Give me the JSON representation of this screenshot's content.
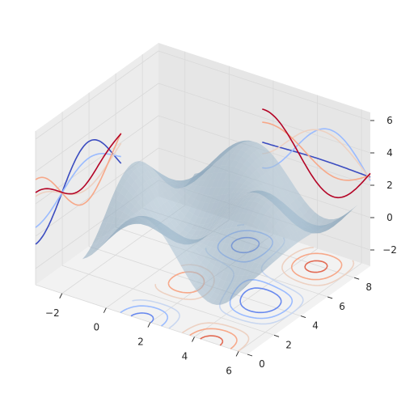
{
  "chart_data": {
    "type": "surface3d",
    "description_free": true,
    "surface": {
      "function": "z = 2*sin(x)*cos(y) + noise-free lobes",
      "x_range": [
        -3,
        6.5
      ],
      "y_range": [
        0,
        9
      ],
      "colors": {
        "surface_light": "#cfe3f0",
        "surface_mid": "#a9c8dd",
        "surface_dark": "#5f7f99"
      }
    },
    "axes": {
      "x": {
        "ticks": [
          -2,
          0,
          2,
          4,
          6
        ],
        "range": [
          -3.2,
          6.4
        ]
      },
      "y": {
        "ticks": [
          0,
          2,
          4,
          6,
          8
        ],
        "range": [
          0,
          9.2
        ]
      },
      "z": {
        "ticks": [
          -2,
          0,
          2,
          4,
          6
        ],
        "range": [
          -3,
          6.5
        ]
      }
    },
    "tick_labels": {
      "x": [
        "−2",
        "0",
        "2",
        "4",
        "6"
      ],
      "y": [
        "0",
        "2",
        "4",
        "6",
        "8"
      ],
      "z": [
        "−2",
        "0",
        "2",
        "4",
        "6"
      ]
    },
    "contour_colors": [
      "#3b4cc0",
      "#6788ee",
      "#9abbff",
      "#c9d7f0",
      "#edd1c2",
      "#f7a889",
      "#e26952",
      "#b40426"
    ],
    "grid": true,
    "pane_color": "#f2f2f2",
    "grid_color": "#d9d9d9"
  }
}
